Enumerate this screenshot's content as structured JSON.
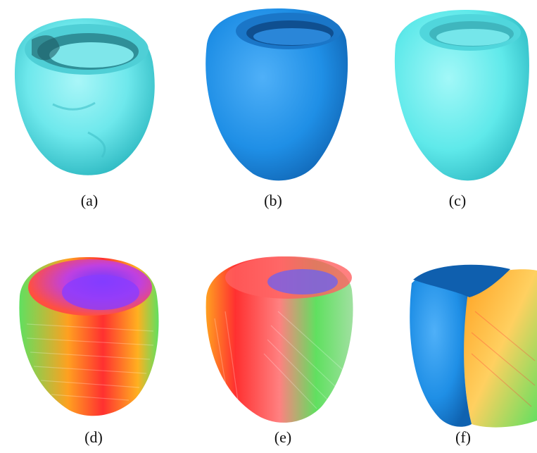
{
  "figure": {
    "panels": [
      {
        "id": "a",
        "caption": "(a)",
        "render": "smooth-mesh",
        "color": "#6ee8ec"
      },
      {
        "id": "b",
        "caption": "(b)",
        "render": "smooth-surface",
        "color": "#1f8fe6"
      },
      {
        "id": "c",
        "caption": "(c)",
        "render": "smooth-surface",
        "color": "#5fe9ea"
      },
      {
        "id": "d",
        "caption": "(d)",
        "render": "fiber-glyphs",
        "colors": [
          "#ff3030",
          "#ffa020",
          "#60e060",
          "#8040ff"
        ]
      },
      {
        "id": "e",
        "caption": "(e)",
        "render": "fiber-glyphs",
        "colors": [
          "#ff3030",
          "#ffa020",
          "#60e060",
          "#8040ff"
        ]
      },
      {
        "id": "f",
        "caption": "(f)",
        "render": "surface-and-fibers",
        "colors": [
          "#1f8fe6",
          "#ffa020",
          "#60e060"
        ]
      }
    ]
  }
}
